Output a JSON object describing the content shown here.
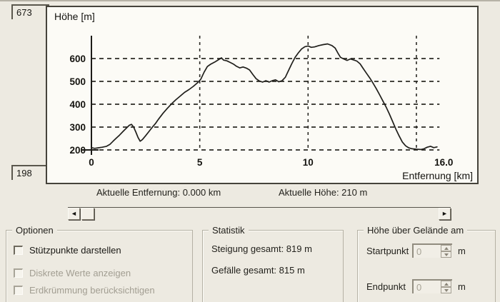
{
  "elevation_boxes": {
    "max": "673",
    "min": "198"
  },
  "chart_data": {
    "type": "line",
    "title": "Höhe [m]",
    "xlabel": "Entfernung [km]",
    "xlim": [
      0,
      16
    ],
    "ylim": [
      200,
      680
    ],
    "x_tick_labels": [
      "0",
      "5",
      "10",
      "16.0"
    ],
    "x_tick_km": [
      0,
      5,
      10,
      16
    ],
    "x_gridlines_km": [
      5,
      10,
      15
    ],
    "y_ticks": [
      200,
      300,
      400,
      500,
      600
    ],
    "grid": "dashed",
    "legend": "none",
    "points": [
      [
        0,
        210
      ],
      [
        0.15,
        207
      ],
      [
        0.3,
        209
      ],
      [
        0.5,
        212
      ],
      [
        0.7,
        216
      ],
      [
        0.85,
        224
      ],
      [
        1.0,
        238
      ],
      [
        1.15,
        252
      ],
      [
        1.3,
        265
      ],
      [
        1.45,
        280
      ],
      [
        1.6,
        294
      ],
      [
        1.75,
        308
      ],
      [
        1.85,
        312
      ],
      [
        1.95,
        300
      ],
      [
        2.05,
        278
      ],
      [
        2.15,
        255
      ],
      [
        2.25,
        238
      ],
      [
        2.35,
        245
      ],
      [
        2.5,
        262
      ],
      [
        2.65,
        280
      ],
      [
        2.8,
        298
      ],
      [
        2.95,
        315
      ],
      [
        3.1,
        335
      ],
      [
        3.3,
        360
      ],
      [
        3.5,
        382
      ],
      [
        3.7,
        402
      ],
      [
        3.9,
        420
      ],
      [
        4.1,
        436
      ],
      [
        4.3,
        452
      ],
      [
        4.5,
        464
      ],
      [
        4.7,
        478
      ],
      [
        4.9,
        494
      ],
      [
        5.05,
        510
      ],
      [
        5.2,
        540
      ],
      [
        5.35,
        565
      ],
      [
        5.5,
        575
      ],
      [
        5.7,
        585
      ],
      [
        5.9,
        597
      ],
      [
        6.0,
        603
      ],
      [
        6.1,
        593
      ],
      [
        6.25,
        590
      ],
      [
        6.4,
        583
      ],
      [
        6.55,
        576
      ],
      [
        6.7,
        566
      ],
      [
        6.85,
        559
      ],
      [
        7.0,
        563
      ],
      [
        7.15,
        558
      ],
      [
        7.3,
        550
      ],
      [
        7.45,
        530
      ],
      [
        7.6,
        512
      ],
      [
        7.75,
        502
      ],
      [
        7.9,
        497
      ],
      [
        8.05,
        503
      ],
      [
        8.2,
        497
      ],
      [
        8.35,
        503
      ],
      [
        8.5,
        507
      ],
      [
        8.65,
        498
      ],
      [
        8.8,
        503
      ],
      [
        8.95,
        518
      ],
      [
        9.1,
        548
      ],
      [
        9.25,
        578
      ],
      [
        9.4,
        605
      ],
      [
        9.55,
        625
      ],
      [
        9.7,
        642
      ],
      [
        9.85,
        652
      ],
      [
        10.0,
        655
      ],
      [
        10.15,
        649
      ],
      [
        10.3,
        651
      ],
      [
        10.5,
        657
      ],
      [
        10.7,
        661
      ],
      [
        10.9,
        664
      ],
      [
        11.1,
        657
      ],
      [
        11.25,
        646
      ],
      [
        11.4,
        620
      ],
      [
        11.5,
        605
      ],
      [
        11.65,
        598
      ],
      [
        11.8,
        592
      ],
      [
        11.95,
        598
      ],
      [
        12.1,
        594
      ],
      [
        12.25,
        589
      ],
      [
        12.4,
        577
      ],
      [
        12.55,
        556
      ],
      [
        12.7,
        535
      ],
      [
        12.85,
        515
      ],
      [
        13.0,
        492
      ],
      [
        13.15,
        468
      ],
      [
        13.3,
        442
      ],
      [
        13.45,
        415
      ],
      [
        13.6,
        388
      ],
      [
        13.75,
        358
      ],
      [
        13.9,
        325
      ],
      [
        14.05,
        292
      ],
      [
        14.2,
        262
      ],
      [
        14.35,
        235
      ],
      [
        14.5,
        218
      ],
      [
        14.65,
        209
      ],
      [
        14.8,
        205
      ],
      [
        15.0,
        203
      ],
      [
        15.2,
        202
      ],
      [
        15.35,
        205
      ],
      [
        15.5,
        212
      ],
      [
        15.65,
        216
      ],
      [
        15.8,
        210
      ],
      [
        15.95,
        213
      ]
    ]
  },
  "status": {
    "distance": "Aktuelle Entfernung: 0.000 km",
    "height": "Aktuelle Höhe: 210 m"
  },
  "scrollbar": {
    "left_arrow": "◄",
    "right_arrow": "►"
  },
  "groups": {
    "optionen": {
      "title": "Optionen",
      "checkboxes": [
        {
          "label": "Stützpunkte darstellen",
          "checked": false,
          "enabled": true
        },
        {
          "label": "Diskrete Werte anzeigen",
          "checked": false,
          "enabled": false
        },
        {
          "label": "Erdkrümmung berücksichtigen",
          "checked": false,
          "enabled": false
        }
      ]
    },
    "statistik": {
      "title": "Statistik",
      "lines": [
        "Steigung gesamt: 819 m",
        "Gefälle gesamt: 815 m"
      ]
    },
    "hoehe": {
      "title": "Höhe über Gelände am",
      "rows": [
        {
          "label": "Startpunkt",
          "value": "0",
          "unit": "m",
          "enabled": false
        },
        {
          "label": "Endpunkt",
          "value": "0",
          "unit": "m",
          "enabled": false
        }
      ]
    }
  },
  "colors": {
    "background": "#edeae1",
    "chart_bg": "#fcfbf6",
    "frame_border": "#45433b",
    "curve": "#201f1b",
    "grid": "#2b2a25",
    "disabled_text": "#a29e92"
  }
}
